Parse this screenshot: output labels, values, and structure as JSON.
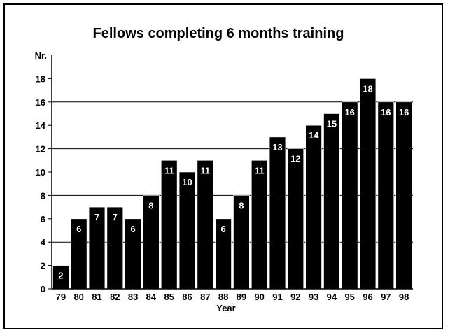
{
  "chart_data": {
    "type": "bar",
    "title": "Fellows completing 6 months training",
    "xlabel": "Year",
    "ylabel": "Nr.",
    "ylim": [
      0,
      20
    ],
    "yticks": [
      0,
      2,
      4,
      6,
      8,
      10,
      12,
      14,
      16,
      18
    ],
    "gridlines": [
      4,
      8,
      12,
      16
    ],
    "categories": [
      "79",
      "80",
      "81",
      "82",
      "83",
      "84",
      "85",
      "86",
      "87",
      "88",
      "89",
      "90",
      "91",
      "92",
      "93",
      "94",
      "95",
      "96",
      "97",
      "98"
    ],
    "values": [
      2,
      6,
      7,
      7,
      6,
      8,
      11,
      10,
      11,
      6,
      8,
      11,
      13,
      12,
      14,
      15,
      16,
      18,
      16,
      16
    ],
    "bar_color": "#000000",
    "label_color": "#ffffff"
  }
}
